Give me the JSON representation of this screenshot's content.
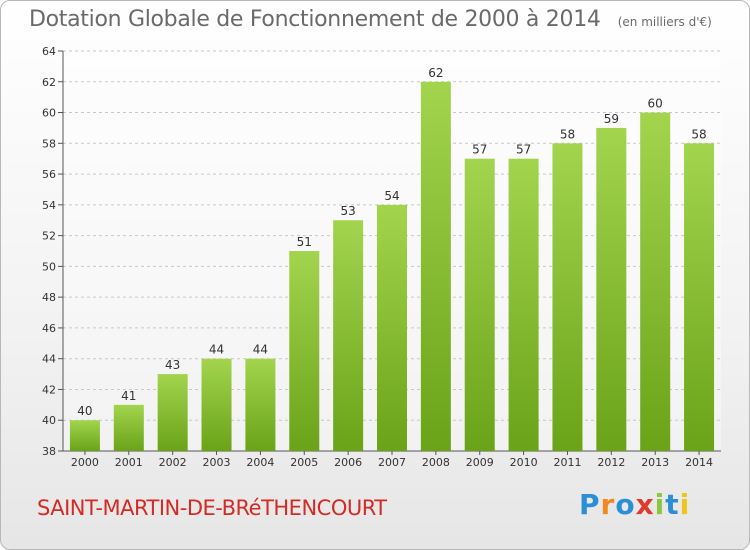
{
  "header": {
    "title": "Dotation Globale de Fonctionnement de 2000 à 2014",
    "unit": "(en milliers d'€)"
  },
  "footer": {
    "commune": "SAINT-MARTIN-DE-BRéTHENCOURT",
    "brand": "Proxiti"
  },
  "colors": {
    "bar_light": "#a3d44e",
    "bar_dark": "#6aa318",
    "text": "#333333",
    "commune": "#d42a24"
  },
  "chart_data": {
    "type": "bar",
    "title": "Dotation Globale de Fonctionnement de 2000 à 2014",
    "subtitle": "(en milliers d'€)",
    "xlabel": "",
    "ylabel": "",
    "categories": [
      "2000",
      "2001",
      "2002",
      "2003",
      "2004",
      "2005",
      "2006",
      "2007",
      "2008",
      "2009",
      "2010",
      "2011",
      "2012",
      "2013",
      "2014"
    ],
    "values": [
      40,
      41,
      43,
      44,
      44,
      51,
      53,
      54,
      62,
      57,
      57,
      58,
      59,
      60,
      58
    ],
    "ylim": [
      38,
      64
    ],
    "yticks": [
      38,
      40,
      42,
      44,
      46,
      48,
      50,
      52,
      54,
      56,
      58,
      60,
      62,
      64
    ],
    "grid": true,
    "legend": "none"
  }
}
